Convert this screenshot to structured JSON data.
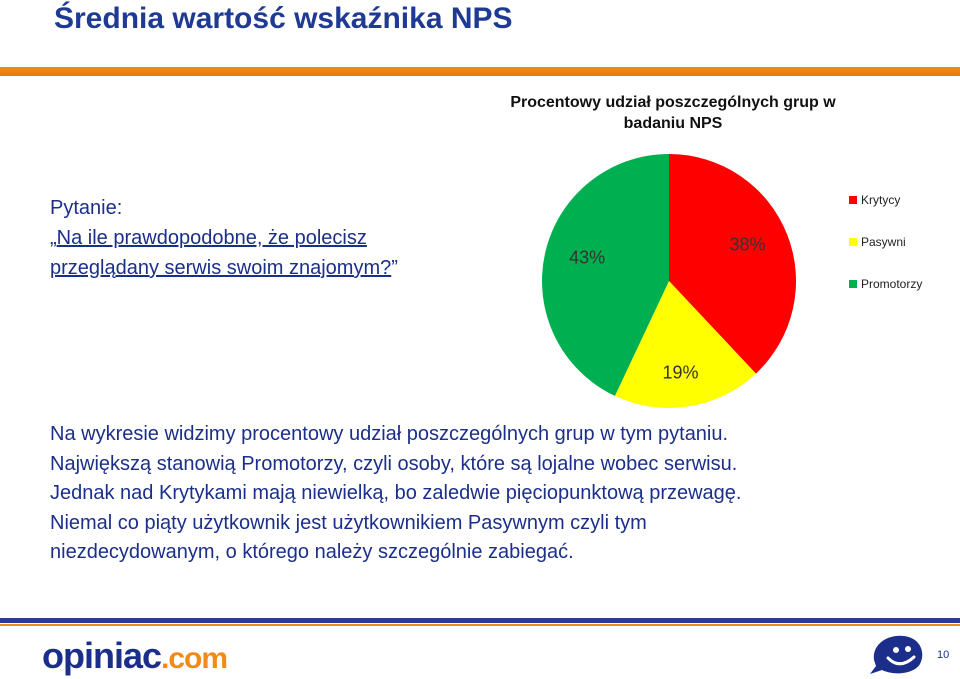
{
  "slide": {
    "title": "Średnia wartość wskaźnika NPS",
    "question_label": "Pytanie:",
    "question_open": "„",
    "question_text": "Na ile prawdopodobne, że polecisz przeglądany serwis swoim znajomym?",
    "question_close": "”",
    "body_lines": [
      "Na wykresie widzimy procentowy udział poszczególnych grup w tym pytaniu.",
      "Największą stanowią Promotorzy, czyli osoby, które są lojalne wobec serwisu.",
      "Jednak nad Krytykami mają niewielką, bo zaledwie pięciopunktową przewagę.",
      "Niemal co piąty użytkownik jest użytkownikiem Pasywnym czyli tym",
      "niezdecydowanym, o którego należy szczególnie zabiegać."
    ],
    "page_number": "10"
  },
  "logo": {
    "text": "opiniac",
    "suffix": ".com"
  },
  "colors": {
    "title": "#1f3a93",
    "body": "#1b2f8a",
    "accent_orange": "#f28a1a",
    "krytycy": "#ff0000",
    "pasywni": "#ffff00",
    "promotorzy": "#00b050"
  },
  "chart_data": {
    "type": "pie",
    "title": "Procentowy udział poszczególnych grup w badaniu NPS",
    "legend_position": "right",
    "slices": [
      {
        "name": "Krytycy",
        "value": 38,
        "label": "38%",
        "color": "#ff0000"
      },
      {
        "name": "Pasywni",
        "value": 19,
        "label": "19%",
        "color": "#ffff00"
      },
      {
        "name": "Promotorzy",
        "value": 43,
        "label": "43%",
        "color": "#00b050"
      }
    ]
  }
}
